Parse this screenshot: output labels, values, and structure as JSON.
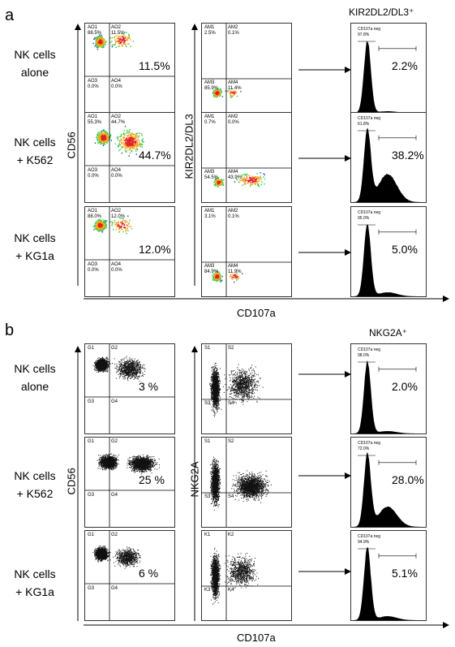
{
  "panels": [
    {
      "letter": "a",
      "hist_title": "KIR2DL2/DL3⁺",
      "y1_label": "CD56",
      "y2_label": "KIR2DL2/DL3",
      "x_label": "CD107a",
      "rows": [
        {
          "label_line1": "NK cells",
          "label_line2": "alone",
          "pct1": "11.5%",
          "pct3": "2.2%",
          "q1": [
            "AO1",
            "AO2",
            "AO3",
            "AO4"
          ],
          "q1v": [
            "88.5%",
            "11.5%",
            "0.0%",
            "0.0%"
          ],
          "q2": [
            "AM1",
            "AM2",
            "AM3",
            "AM4"
          ],
          "q2v": [
            "2.5%",
            "0.1%",
            "85.9%",
            "11.4%"
          ],
          "hist_gate": "CD107a neg",
          "hist_gate_val": "97.8%"
        },
        {
          "label_line1": "NK cells",
          "label_line2": "+ K562",
          "pct1": "44.7%",
          "pct3": "38.2%",
          "q1": [
            "AO1",
            "AO2",
            "AO3",
            "AO4"
          ],
          "q1v": [
            "55.3%",
            "44.7%",
            "0.0%",
            "0.0%"
          ],
          "q2": [
            "AM1",
            "AM2",
            "AM3",
            "AM4"
          ],
          "q2v": [
            "0.7%",
            "0.0%",
            "54.5%",
            "43.9%"
          ],
          "hist_gate": "CD107a neg",
          "hist_gate_val": "61.8%"
        },
        {
          "label_line1": "NK cells",
          "label_line2": "+ KG1a",
          "pct1": "12.0%",
          "pct3": "5.0%",
          "q1": [
            "AO1",
            "AO2",
            "AO3",
            "AO4"
          ],
          "q1v": [
            "88.0%",
            "12.0%",
            "0.0%",
            "0.0%"
          ],
          "q2": [
            "AM1",
            "AM2",
            "AM3",
            "AM4"
          ],
          "q2v": [
            "3.1%",
            "0.1%",
            "84.9%",
            "11.9%"
          ],
          "hist_gate": "CD107a neg",
          "hist_gate_val": "95.0%"
        }
      ]
    },
    {
      "letter": "b",
      "hist_title": "NKG2A⁺",
      "y1_label": "CD56",
      "y2_label": "NKG2A",
      "x_label": "CD107a",
      "rows": [
        {
          "label_line1": "NK cells",
          "label_line2": "alone",
          "pct1": "3 %",
          "pct3": "2.0%",
          "q1": [
            "G1",
            "G2",
            "G3",
            "G4"
          ],
          "q2": [
            "S1",
            "S2",
            "S3",
            "S4"
          ],
          "hist_gate": "CD107a neg",
          "hist_gate_val": "98.0%"
        },
        {
          "label_line1": "NK cells",
          "label_line2": "+ K562",
          "pct1": "25 %",
          "pct3": "28.0%",
          "q1": [
            "G1",
            "G2",
            "G3",
            "G4"
          ],
          "q2": [
            "S1",
            "S2",
            "S3",
            "S4"
          ],
          "hist_gate": "CD107a neg",
          "hist_gate_val": "72.0%"
        },
        {
          "label_line1": "NK cells",
          "label_line2": "+ KG1a",
          "pct1": "6 %",
          "pct3": "5.1%",
          "q1": [
            "G1",
            "G2",
            "G3",
            "G4"
          ],
          "q2": [
            "K1",
            "K2",
            "K3",
            "K4"
          ],
          "hist_gate": "CD107a neg",
          "hist_gate_val": "94.9%"
        }
      ]
    }
  ]
}
